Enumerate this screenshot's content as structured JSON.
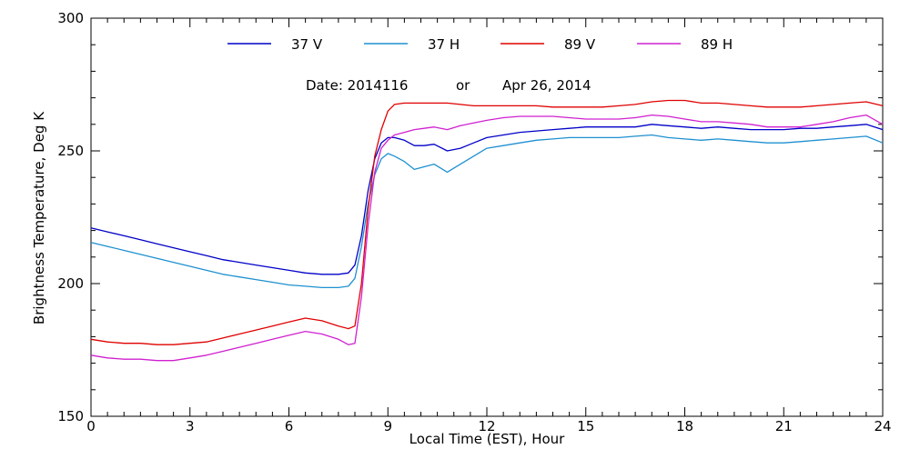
{
  "chart_data": {
    "type": "line",
    "title": "",
    "xlabel": "Local Time (EST), Hour",
    "ylabel": "Brightness Temperature, Deg K",
    "xlim": [
      0,
      24
    ],
    "ylim": [
      150,
      300
    ],
    "x_ticks": [
      "0",
      "3",
      "6",
      "9",
      "12",
      "15",
      "18",
      "21",
      "24"
    ],
    "y_ticks": [
      "150",
      "200",
      "250",
      "300"
    ],
    "annotation": {
      "date_label": "Date: 2014116",
      "or_label": "or",
      "calendar_date": "Apr 26, 2014"
    },
    "legend_position": "top",
    "grid": false,
    "x": [
      0,
      0.5,
      1,
      1.5,
      2,
      2.5,
      3,
      3.5,
      4,
      4.5,
      5,
      5.5,
      6,
      6.5,
      7,
      7.5,
      7.8,
      8.0,
      8.2,
      8.4,
      8.6,
      8.8,
      9.0,
      9.2,
      9.5,
      9.8,
      10.1,
      10.4,
      10.8,
      11.2,
      11.6,
      12.0,
      12.5,
      13,
      13.5,
      14,
      14.5,
      15,
      15.5,
      16,
      16.5,
      17,
      17.5,
      18,
      18.5,
      19,
      19.5,
      20,
      20.5,
      21,
      21.5,
      22,
      22.5,
      23,
      23.5,
      24
    ],
    "series": [
      {
        "name": "37 V",
        "color": "#0000c8",
        "values": [
          221,
          219.5,
          218,
          216.5,
          215,
          213.5,
          212,
          210.5,
          209,
          208,
          207,
          206,
          205,
          204,
          203.5,
          203.5,
          204,
          207,
          218,
          235,
          247,
          253,
          255,
          255,
          254,
          252,
          252,
          252.5,
          250,
          251,
          253,
          255,
          256,
          257,
          257.5,
          258,
          258.5,
          259,
          259,
          259,
          259,
          260,
          259.5,
          259,
          258.5,
          259,
          258.5,
          258,
          258,
          258,
          258.5,
          258.5,
          259,
          259.5,
          260,
          258
        ]
      },
      {
        "name": "37 H",
        "color": "#1e90d0",
        "values": [
          215.5,
          214,
          212.5,
          211,
          209.5,
          208,
          206.5,
          205,
          203.5,
          202.5,
          201.5,
          200.5,
          199.5,
          199,
          198.5,
          198.5,
          199,
          202,
          214,
          230,
          241,
          247,
          249,
          248,
          246,
          243,
          244,
          245,
          242,
          245,
          248,
          251,
          252,
          253,
          254,
          254.5,
          255,
          255,
          255,
          255,
          255.5,
          256,
          255,
          254.5,
          254,
          254.5,
          254,
          253.5,
          253,
          253,
          253.5,
          254,
          254.5,
          255,
          255.5,
          253
        ]
      },
      {
        "name": "89 V",
        "color": "#e00000",
        "values": [
          179,
          178,
          177.5,
          177.5,
          177,
          177,
          177.5,
          178,
          179.5,
          181,
          182.5,
          184,
          185.5,
          187,
          186,
          184,
          183,
          184,
          200,
          228,
          248,
          258,
          265,
          267.5,
          268,
          268,
          268,
          268,
          268,
          267.5,
          267,
          267,
          267,
          267,
          267,
          266.5,
          266.5,
          266.5,
          266.5,
          267,
          267.5,
          268.5,
          269,
          269,
          268,
          268,
          267.5,
          267,
          266.5,
          266.5,
          266.5,
          267,
          267.5,
          268,
          268.5,
          267
        ]
      },
      {
        "name": "89 H",
        "color": "#d020d0",
        "values": [
          173,
          172,
          171.5,
          171.5,
          171,
          171,
          172,
          173,
          174.5,
          176,
          177.5,
          179,
          180.5,
          182,
          181,
          179,
          177,
          177.5,
          195,
          222,
          242,
          251,
          254,
          256,
          257,
          258,
          258.5,
          259,
          258,
          259.5,
          260.5,
          261.5,
          262.5,
          263,
          263,
          263,
          262.5,
          262,
          262,
          262,
          262.5,
          263.5,
          263,
          262,
          261,
          261,
          260.5,
          260,
          259,
          259,
          259,
          260,
          261,
          262.5,
          263.5,
          260
        ]
      }
    ]
  }
}
